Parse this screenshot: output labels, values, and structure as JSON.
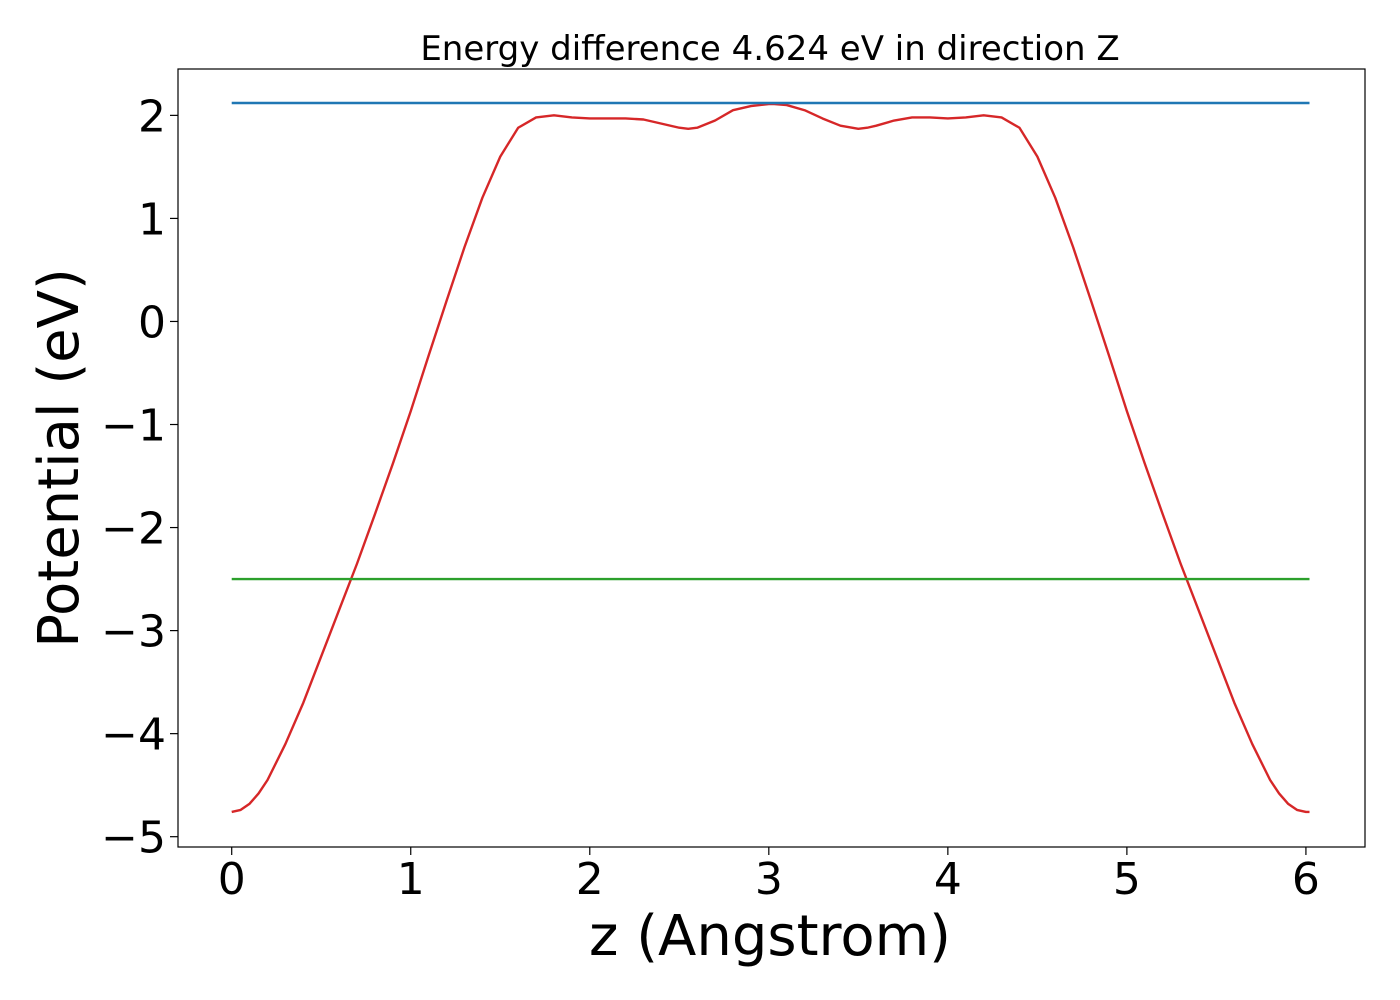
{
  "chart_data": {
    "type": "line",
    "title": "Energy difference 4.624 eV in direction Z",
    "xlabel": "z (Angstrom)",
    "ylabel": "Potential (eV)",
    "xlim": [
      -0.3,
      6.33
    ],
    "ylim": [
      -5.1,
      2.45
    ],
    "xticks": [
      0,
      1,
      2,
      3,
      4,
      5,
      6
    ],
    "xtick_labels": [
      "0",
      "1",
      "2",
      "3",
      "4",
      "5",
      "6"
    ],
    "yticks": [
      2,
      1,
      0,
      -1,
      -2,
      -3,
      -4,
      -5
    ],
    "ytick_labels": [
      "2",
      "1",
      "0",
      "−1",
      "−2",
      "−3",
      "−4",
      "−5"
    ],
    "grid": false,
    "legend": false,
    "series": [
      {
        "color": "#d62728",
        "x": [
          0.0,
          0.05,
          0.1,
          0.15,
          0.2,
          0.3,
          0.4,
          0.5,
          0.6,
          0.7,
          0.8,
          0.9,
          1.0,
          1.1,
          1.2,
          1.3,
          1.4,
          1.5,
          1.6,
          1.7,
          1.8,
          1.9,
          2.0,
          2.1,
          2.2,
          2.3,
          2.4,
          2.5,
          2.55,
          2.6,
          2.7,
          2.8,
          2.9,
          3.0,
          3.03,
          3.1,
          3.2,
          3.3,
          3.4,
          3.5,
          3.55,
          3.6,
          3.7,
          3.8,
          3.9,
          4.0,
          4.1,
          4.2,
          4.3,
          4.4,
          4.5,
          4.6,
          4.7,
          4.8,
          4.9,
          5.0,
          5.1,
          5.2,
          5.3,
          5.4,
          5.5,
          5.6,
          5.7,
          5.8,
          5.85,
          5.9,
          5.95,
          6.0,
          6.02
        ],
        "y": [
          -4.76,
          -4.74,
          -4.68,
          -4.58,
          -4.45,
          -4.1,
          -3.7,
          -3.25,
          -2.8,
          -2.35,
          -1.87,
          -1.38,
          -0.87,
          -0.33,
          0.2,
          0.72,
          1.2,
          1.6,
          1.88,
          1.98,
          2.0,
          1.98,
          1.97,
          1.97,
          1.97,
          1.96,
          1.92,
          1.88,
          1.87,
          1.88,
          1.95,
          2.05,
          2.09,
          2.11,
          2.11,
          2.1,
          2.05,
          1.97,
          1.9,
          1.87,
          1.88,
          1.9,
          1.95,
          1.98,
          1.98,
          1.97,
          1.98,
          2.0,
          1.98,
          1.88,
          1.6,
          1.2,
          0.72,
          0.2,
          -0.33,
          -0.87,
          -1.38,
          -1.87,
          -2.35,
          -2.8,
          -3.25,
          -3.7,
          -4.1,
          -4.45,
          -4.58,
          -4.68,
          -4.74,
          -4.76,
          -4.76
        ]
      },
      {
        "color": "#1f77b4",
        "x": [
          0.0,
          6.02
        ],
        "y": [
          2.12,
          2.12
        ]
      },
      {
        "color": "#2ca02c",
        "x": [
          0.0,
          6.02
        ],
        "y": [
          -2.5,
          -2.5
        ]
      }
    ]
  }
}
